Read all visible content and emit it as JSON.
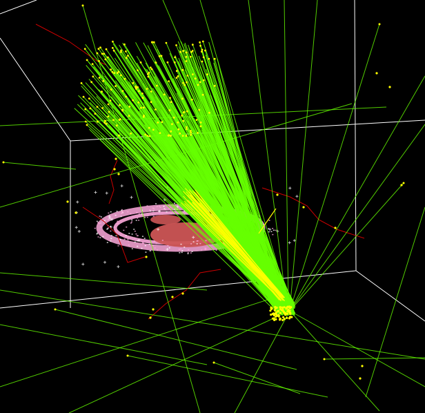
{
  "scene": {
    "background_color": "#000000",
    "bounding_box_color": "#ffffff",
    "shower_track_color": "#66ff00",
    "secondary_track_color": "#66ff00",
    "muon_track_color": "#cc0000",
    "hit_color": "#ffff00",
    "core_hit_color": "#ffff00",
    "detector_ring_color": "#ffaadd",
    "detector_core_color": "#cc5555",
    "cross_marker_color": "#ffffff"
  }
}
